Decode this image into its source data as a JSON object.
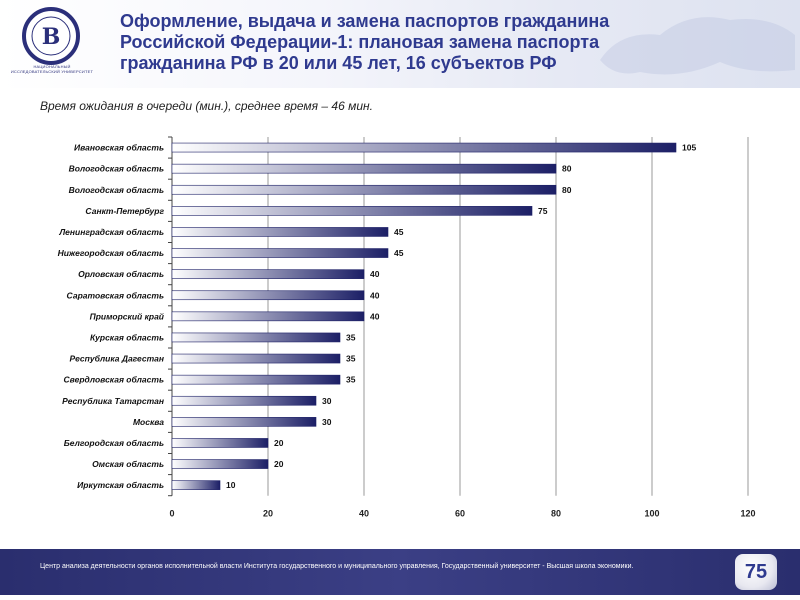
{
  "header": {
    "title": "Оформление, выдача и замена паспортов гражданина Российской Федерации-1: плановая замена паспорта гражданина РФ в 20 или 45 лет, 16 субъектов РФ",
    "logo_caption": "НАЦИОНАЛЬНЫЙ ИССЛЕДОВАТЕЛЬСКИЙ УНИВЕРСИТЕТ"
  },
  "subtitle": "Время ожидания в очереди (мин.), среднее время – 46 мин.",
  "chart_data": {
    "type": "bar",
    "orientation": "horizontal",
    "title": "Время ожидания в очереди (мин.), среднее время – 46 мин.",
    "categories": [
      "Ивановская область",
      "Вологодская область",
      "Вологодская область",
      "Санкт-Петербург",
      "Ленинградская область",
      "Нижегородская область",
      "Орловская область",
      "Саратовская область",
      "Приморский край",
      "Курская область",
      "Республика Дагестан",
      "Свердловская область",
      "Республика Татарстан",
      "Москва",
      "Белгородская область",
      "Омская область",
      "Иркутская область"
    ],
    "values": [
      105,
      80,
      80,
      75,
      45,
      45,
      40,
      40,
      40,
      35,
      35,
      35,
      30,
      30,
      20,
      20,
      10
    ],
    "xlim": [
      0,
      120
    ],
    "xticks": [
      0,
      20,
      40,
      60,
      80,
      100,
      120
    ],
    "grid": true,
    "bar_color_start": "#ffffff",
    "bar_color_end": "#1c1f66"
  },
  "footer": {
    "text": "Центр анализа деятельности органов исполнительной власти Института государственного  и муниципального управления, Государственный университет  - Высшая школа экономики.",
    "page_number": "75"
  }
}
